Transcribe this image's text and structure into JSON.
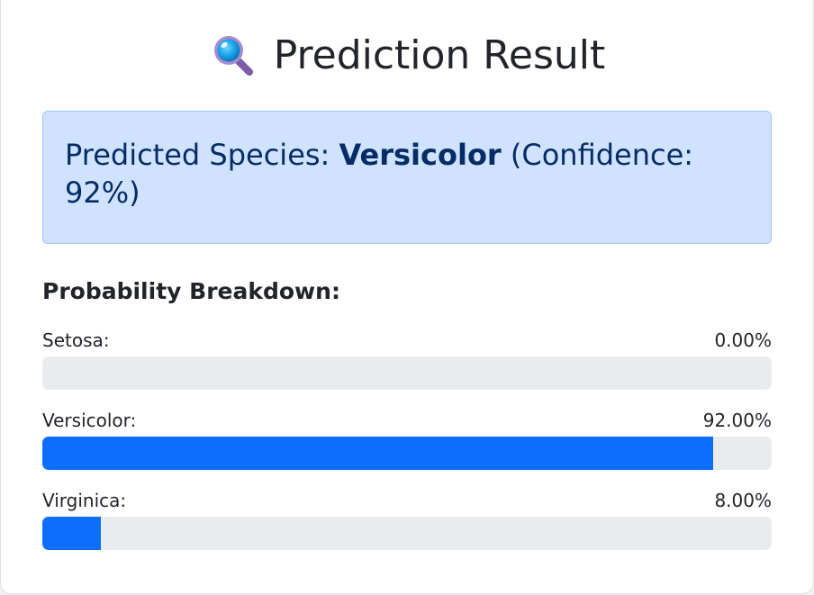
{
  "header": {
    "title": "Prediction Result",
    "icon": "magnifying-glass-icon"
  },
  "result": {
    "prefix": "Predicted Species: ",
    "species": "Versicolor",
    "suffix": " (Confidence: 92%)"
  },
  "breakdown": {
    "title": "Probability Breakdown:",
    "items": [
      {
        "label": "Setosa:",
        "value_text": "0.00%",
        "value": 0.0
      },
      {
        "label": "Versicolor:",
        "value_text": "92.00%",
        "value": 0.92
      },
      {
        "label": "Virginica:",
        "value_text": "8.00%",
        "value": 0.08
      }
    ]
  },
  "colors": {
    "accent": "#0d6efd",
    "alert_bg": "#cfe2ff",
    "alert_text": "#052c65",
    "track": "#e9ecef"
  }
}
